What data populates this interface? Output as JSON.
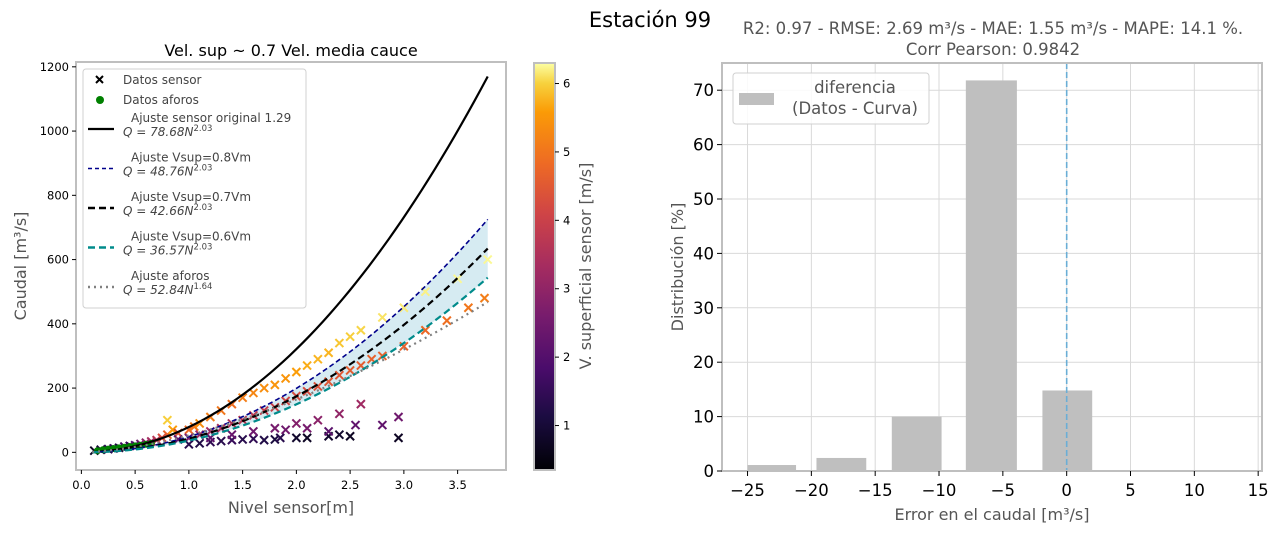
{
  "suptitle": "Estación 99",
  "chart_data": [
    {
      "type": "scatter",
      "title": "Vel. sup ~ 0.7 Vel. media cauce",
      "xlabel": "Nivel sensor[m]",
      "ylabel": "Caudal [m³/s]",
      "xlim": [
        -0.05,
        3.95
      ],
      "ylim": [
        -55,
        1215
      ],
      "xticks": [
        0.0,
        0.5,
        1.0,
        1.5,
        2.0,
        2.5,
        3.0,
        3.5
      ],
      "xtick_labels": [
        "0.0",
        "0.5",
        "1.0",
        "1.5",
        "2.0",
        "2.5",
        "3.0",
        "3.5"
      ],
      "yticks": [
        0,
        200,
        400,
        600,
        800,
        1000,
        1200
      ],
      "ytick_labels": [
        "0",
        "200",
        "400",
        "600",
        "800",
        "1000",
        "1200"
      ],
      "grid": false,
      "legend_position": "upper-left",
      "legend": [
        {
          "label": "Datos sensor",
          "marker": "x",
          "color": "#000000"
        },
        {
          "label": "Datos aforos",
          "marker": "o",
          "color": "#008000"
        },
        {
          "label": "Ajuste sensor original 1.29",
          "formula": "Q = 78.68N",
          "exp": "2.03",
          "style": "solid",
          "color": "#000000"
        },
        {
          "label": "Ajuste Vsup=0.8Vm",
          "formula": "Q = 48.76N",
          "exp": "2.03",
          "style": "dashed",
          "color": "#00008b"
        },
        {
          "label": "Ajuste Vsup=0.7Vm",
          "formula": "Q = 42.66N",
          "exp": "2.03",
          "style": "dashed",
          "color": "#000000"
        },
        {
          "label": "Ajuste Vsup=0.6Vm",
          "formula": "Q = 36.57N",
          "exp": "2.03",
          "style": "dashed",
          "color": "#008b8b"
        },
        {
          "label": "Ajuste aforos",
          "formula": "Q = 52.84N",
          "exp": "1.64",
          "style": "dotted",
          "color": "#808080"
        }
      ],
      "curves": [
        {
          "name": "ajuste-sensor-original",
          "a": 78.68,
          "b": 2.03,
          "x_range": [
            0.1,
            3.78
          ],
          "style": "solid",
          "color": "#000000",
          "width": 2.2
        },
        {
          "name": "ajuste-vsup-0.8",
          "a": 48.76,
          "b": 2.03,
          "x_range": [
            0.1,
            3.78
          ],
          "style": "dashed",
          "color": "#00008b",
          "width": 1.6
        },
        {
          "name": "ajuste-vsup-0.7",
          "a": 42.66,
          "b": 2.03,
          "x_range": [
            0.1,
            3.78
          ],
          "style": "dashed",
          "color": "#000000",
          "width": 2.2
        },
        {
          "name": "ajuste-vsup-0.6",
          "a": 36.57,
          "b": 2.03,
          "x_range": [
            0.1,
            3.78
          ],
          "style": "dashed",
          "color": "#008b8b",
          "width": 2.2
        },
        {
          "name": "ajuste-aforos",
          "a": 52.84,
          "b": 1.64,
          "x_range": [
            0.1,
            3.78
          ],
          "style": "dotted",
          "color": "#808080",
          "width": 2.2
        }
      ],
      "band": {
        "between": [
          "ajuste-vsup-0.6",
          "ajuste-vsup-0.8"
        ],
        "color": "#add8e6",
        "opacity": 0.5
      },
      "sensor_points": [
        [
          0.12,
          5,
          0.7
        ],
        [
          0.18,
          8,
          0.9
        ],
        [
          0.25,
          10,
          1.2
        ],
        [
          0.3,
          12,
          1.3
        ],
        [
          0.35,
          14,
          1.0
        ],
        [
          0.4,
          18,
          1.6
        ],
        [
          0.45,
          20,
          1.4
        ],
        [
          0.5,
          22,
          1.8
        ],
        [
          0.55,
          26,
          2.2
        ],
        [
          0.6,
          30,
          2.6
        ],
        [
          0.65,
          34,
          3.0
        ],
        [
          0.7,
          38,
          3.3
        ],
        [
          0.75,
          45,
          3.8
        ],
        [
          0.8,
          55,
          4.2
        ],
        [
          0.85,
          70,
          5.0
        ],
        [
          0.8,
          100,
          5.6
        ],
        [
          0.9,
          60,
          4.0
        ],
        [
          1.0,
          70,
          4.3
        ],
        [
          1.05,
          80,
          4.5
        ],
        [
          1.1,
          90,
          4.8
        ],
        [
          1.2,
          110,
          4.6
        ],
        [
          1.3,
          130,
          4.5
        ],
        [
          1.4,
          150,
          4.4
        ],
        [
          1.5,
          170,
          4.6
        ],
        [
          1.6,
          185,
          4.7
        ],
        [
          1.7,
          200,
          4.8
        ],
        [
          1.8,
          210,
          4.9
        ],
        [
          1.9,
          230,
          4.9
        ],
        [
          2.0,
          250,
          5.0
        ],
        [
          2.1,
          270,
          5.2
        ],
        [
          2.2,
          290,
          5.3
        ],
        [
          2.3,
          310,
          5.3
        ],
        [
          2.4,
          340,
          5.5
        ],
        [
          2.5,
          360,
          5.6
        ],
        [
          2.6,
          380,
          5.7
        ],
        [
          2.8,
          420,
          5.9
        ],
        [
          3.0,
          450,
          6.0
        ],
        [
          3.2,
          500,
          6.1
        ],
        [
          3.5,
          540,
          6.2
        ],
        [
          3.78,
          600,
          6.2
        ],
        [
          0.9,
          40,
          2.0
        ],
        [
          1.0,
          45,
          2.4
        ],
        [
          1.1,
          55,
          2.8
        ],
        [
          1.2,
          65,
          3.0
        ],
        [
          1.3,
          75,
          3.1
        ],
        [
          1.4,
          90,
          3.2
        ],
        [
          1.5,
          100,
          3.3
        ],
        [
          1.6,
          115,
          3.4
        ],
        [
          1.7,
          130,
          3.5
        ],
        [
          1.8,
          140,
          3.6
        ],
        [
          1.9,
          160,
          3.7
        ],
        [
          2.0,
          175,
          3.8
        ],
        [
          2.1,
          190,
          3.8
        ],
        [
          2.2,
          205,
          3.9
        ],
        [
          2.3,
          220,
          4.0
        ],
        [
          2.4,
          240,
          4.0
        ],
        [
          2.5,
          255,
          4.1
        ],
        [
          2.6,
          270,
          4.1
        ],
        [
          2.7,
          290,
          4.2
        ],
        [
          2.8,
          300,
          4.2
        ],
        [
          3.0,
          330,
          4.2
        ],
        [
          3.2,
          380,
          4.3
        ],
        [
          3.4,
          410,
          4.4
        ],
        [
          3.6,
          450,
          4.5
        ],
        [
          3.75,
          480,
          4.6
        ],
        [
          1.0,
          25,
          1.2
        ],
        [
          1.1,
          28,
          1.1
        ],
        [
          1.2,
          32,
          1.3
        ],
        [
          1.3,
          35,
          1.2
        ],
        [
          1.4,
          38,
          1.4
        ],
        [
          1.5,
          40,
          1.2
        ],
        [
          1.6,
          42,
          1.3
        ],
        [
          1.7,
          38,
          1.1
        ],
        [
          1.8,
          40,
          1.0
        ],
        [
          1.85,
          45,
          1.2
        ],
        [
          1.2,
          45,
          2.0
        ],
        [
          1.4,
          55,
          2.1
        ],
        [
          1.6,
          65,
          2.2
        ],
        [
          1.8,
          75,
          2.3
        ],
        [
          2.0,
          90,
          2.5
        ],
        [
          2.2,
          100,
          2.6
        ],
        [
          2.4,
          120,
          2.7
        ],
        [
          2.6,
          150,
          2.9
        ],
        [
          1.9,
          70,
          2.2
        ],
        [
          2.1,
          75,
          2.3
        ],
        [
          2.0,
          45,
          0.8
        ],
        [
          2.1,
          45,
          0.7
        ],
        [
          2.3,
          50,
          0.8
        ],
        [
          2.4,
          55,
          0.8
        ],
        [
          2.5,
          50,
          0.7
        ],
        [
          2.8,
          85,
          2.0
        ],
        [
          2.95,
          110,
          2.2
        ],
        [
          2.95,
          45,
          0.7
        ],
        [
          2.3,
          65,
          1.9
        ],
        [
          2.55,
          85,
          2.0
        ]
      ],
      "aforo_points": [
        [
          0.15,
          5
        ],
        [
          0.2,
          8
        ],
        [
          0.25,
          10
        ],
        [
          0.3,
          12
        ],
        [
          0.35,
          14
        ],
        [
          0.4,
          16
        ],
        [
          0.45,
          18
        ],
        [
          0.5,
          20
        ],
        [
          0.55,
          22
        ],
        [
          0.6,
          25
        ],
        [
          0.65,
          28
        ]
      ],
      "colorbar": {
        "label": "V. superficial sensor [m/s]",
        "range": [
          0.35,
          6.3
        ],
        "ticks": [
          1,
          2,
          3,
          4,
          5,
          6
        ],
        "tick_labels": [
          "1",
          "2",
          "3",
          "4",
          "5",
          "6"
        ],
        "colormap": "inferno"
      }
    },
    {
      "type": "bar",
      "title": "R2: 0.97 - RMSE: 2.69 m³/s - MAE: 1.55 m³/s - MAPE: 14.1 %.",
      "title_line2": "Corr Pearson: 0.9842",
      "xlabel": "Error en el caudal  [m³/s]",
      "ylabel": "Distribución [%]",
      "xlim": [
        -27,
        15.3
      ],
      "ylim": [
        0,
        75
      ],
      "xticks": [
        -25,
        -20,
        -15,
        -10,
        -5,
        0,
        5,
        10,
        15
      ],
      "xtick_labels": [
        "−25",
        "−20",
        "−15",
        "−10",
        "−5",
        "0",
        "5",
        "10",
        "15"
      ],
      "yticks": [
        0,
        10,
        20,
        30,
        40,
        50,
        60,
        70
      ],
      "ytick_labels": [
        "0",
        "10",
        "20",
        "30",
        "40",
        "50",
        "60",
        "70"
      ],
      "grid": true,
      "legend_position": "upper-left",
      "legend": [
        {
          "label": "diferencia\n(Datos - Curva)",
          "line1": "diferencia",
          "line2": "(Datos - Curva)",
          "color": "#bfbfbf"
        }
      ],
      "bars": [
        {
          "x0": -25.0,
          "x1": -21.2,
          "value": 1.1
        },
        {
          "x0": -19.6,
          "x1": -15.7,
          "value": 2.4
        },
        {
          "x0": -13.7,
          "x1": -9.8,
          "value": 10.0
        },
        {
          "x0": -7.9,
          "x1": -3.9,
          "value": 71.8
        },
        {
          "x0": -1.9,
          "x1": 2.0,
          "value": 14.8
        }
      ],
      "bar_color": "#bfbfbf",
      "vline": {
        "x": 0,
        "style": "dashed",
        "color": "#6aaed6"
      }
    }
  ]
}
